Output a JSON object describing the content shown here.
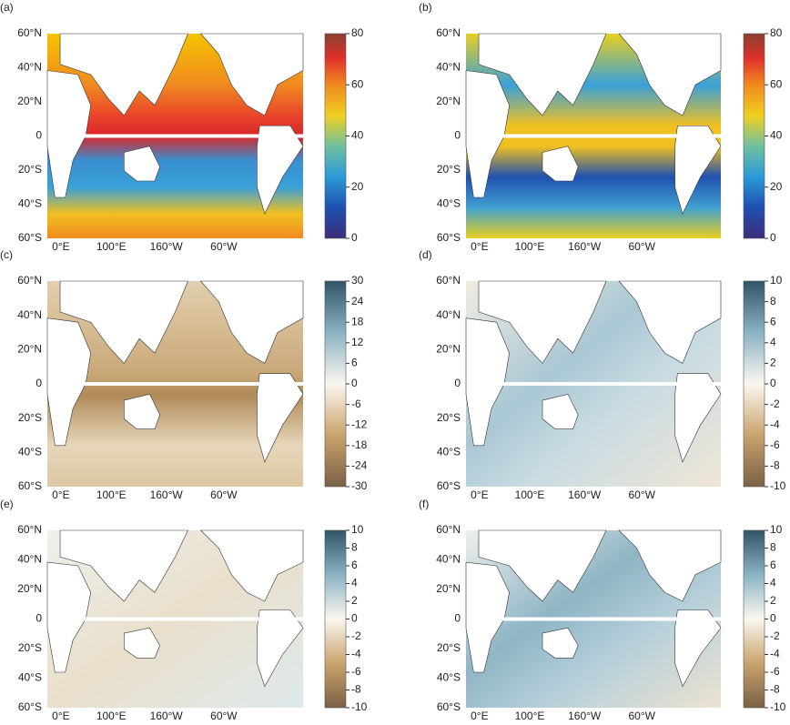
{
  "panels": [
    {
      "label": "(a)",
      "lat_ticks": [
        "60°N",
        "40°N",
        "20°N",
        "0",
        "20°S",
        "40°S",
        "60°S"
      ],
      "lon_ticks": [
        "0°E",
        "100°E",
        "160°W",
        "60°W"
      ],
      "colorbar": {
        "lim": [
          0,
          80
        ],
        "ticks": [
          0,
          20,
          40,
          60,
          80
        ]
      }
    },
    {
      "label": "(b)",
      "lat_ticks": [
        "60°N",
        "40°N",
        "20°N",
        "0",
        "20°S",
        "40°S",
        "60°S"
      ],
      "lon_ticks": [
        "0°E",
        "100°E",
        "160°W",
        "60°W"
      ],
      "colorbar": {
        "lim": [
          0,
          80
        ],
        "ticks": [
          0,
          20,
          40,
          60,
          80
        ]
      }
    },
    {
      "label": "(c)",
      "lat_ticks": [
        "60°N",
        "40°N",
        "20°N",
        "0",
        "20°S",
        "40°S",
        "60°S"
      ],
      "lon_ticks": [
        "0°E",
        "100°E",
        "160°W",
        "60°W"
      ],
      "colorbar": {
        "lim": [
          -30,
          30
        ],
        "ticks": [
          -30,
          -24,
          -18,
          -12,
          -6,
          0,
          6,
          12,
          18,
          24,
          30
        ]
      }
    },
    {
      "label": "(d)",
      "lat_ticks": [
        "60°N",
        "40°N",
        "20°N",
        "0",
        "20°S",
        "40°S",
        "60°S"
      ],
      "lon_ticks": [
        "0°E",
        "100°E",
        "160°W",
        "60°W"
      ],
      "colorbar": {
        "lim": [
          -10,
          10
        ],
        "ticks": [
          -10,
          -8,
          -6,
          -4,
          -2,
          0,
          2,
          4,
          6,
          8,
          10
        ]
      }
    },
    {
      "label": "(e)",
      "lat_ticks": [
        "60°N",
        "40°N",
        "20°N",
        "0",
        "20°S",
        "40°S",
        "60°S"
      ],
      "lon_ticks": [
        "0°E",
        "100°E",
        "160°W",
        "60°W"
      ],
      "colorbar": {
        "lim": [
          -10,
          10
        ],
        "ticks": [
          -10,
          -8,
          -6,
          -4,
          -2,
          0,
          2,
          4,
          6,
          8,
          10
        ]
      }
    },
    {
      "label": "(f)",
      "lat_ticks": [
        "60°N",
        "40°N",
        "20°N",
        "0",
        "20°S",
        "40°S",
        "60°S"
      ],
      "lon_ticks": [
        "0°E",
        "100°E",
        "160°W",
        "60°W"
      ],
      "colorbar": {
        "lim": [
          -10,
          10
        ],
        "ticks": [
          -10,
          -8,
          -6,
          -4,
          -2,
          0,
          2,
          4,
          6,
          8,
          10
        ]
      }
    }
  ]
}
